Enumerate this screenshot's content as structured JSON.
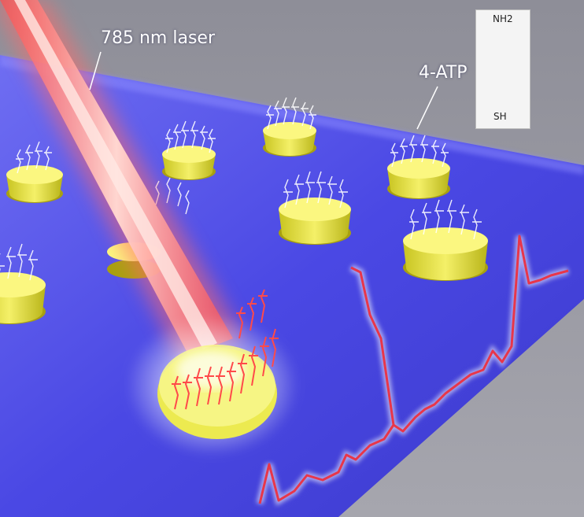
{
  "labels": {
    "laser": "785 nm laser",
    "molecule": "4-ATP"
  },
  "structure": {
    "top_group": "NH2",
    "bottom_group": "SH"
  },
  "colors": {
    "substrate": "#4a4ae6",
    "gold": "#e8e43c",
    "laser": "#ff5a5a",
    "spectrum": "#e8364a",
    "background": "#9a9aa4"
  }
}
